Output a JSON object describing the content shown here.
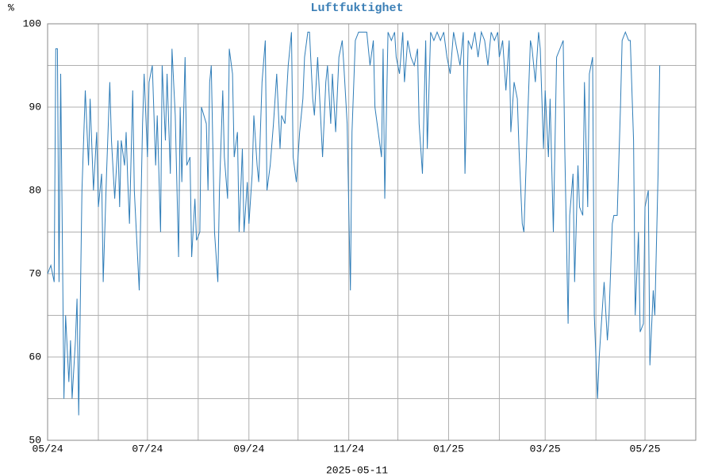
{
  "chart_data": {
    "type": "line",
    "title": "Luftfuktighet",
    "ylabel": "%",
    "xlabel": "2025-05-11",
    "color": "#2f7db8",
    "grid": true,
    "xlim": [
      0,
      396
    ],
    "xticks": [
      {
        "value": 0,
        "label": "05/24"
      },
      {
        "value": 31,
        "label": null
      },
      {
        "value": 61,
        "label": "07/24"
      },
      {
        "value": 92,
        "label": null
      },
      {
        "value": 123,
        "label": "09/24"
      },
      {
        "value": 153,
        "label": null
      },
      {
        "value": 184,
        "label": "11/24"
      },
      {
        "value": 214,
        "label": null
      },
      {
        "value": 245,
        "label": "01/25"
      },
      {
        "value": 276,
        "label": null
      },
      {
        "value": 304,
        "label": "03/25"
      },
      {
        "value": 335,
        "label": null
      },
      {
        "value": 365,
        "label": "05/25"
      },
      {
        "value": 396,
        "label": null
      }
    ],
    "ylim": [
      50,
      100
    ],
    "yticks": [
      50,
      {
        "value": 55,
        "label": null
      },
      60,
      {
        "value": 65,
        "label": null
      },
      70,
      {
        "value": 75,
        "label": null
      },
      80,
      {
        "value": 85,
        "label": null
      },
      90,
      {
        "value": 95,
        "label": null
      },
      100
    ],
    "x": [
      0,
      2,
      4,
      5,
      6,
      7,
      8,
      10,
      11,
      13,
      14,
      15,
      17,
      18,
      19,
      21,
      23,
      25,
      26,
      28,
      30,
      31,
      33,
      34,
      36,
      38,
      39,
      41,
      43,
      44,
      45,
      47,
      48,
      49,
      50,
      52,
      53,
      56,
      58,
      59,
      61,
      62,
      64,
      66,
      67,
      69,
      70,
      72,
      73,
      75,
      76,
      78,
      80,
      81,
      82,
      84,
      85,
      87,
      88,
      90,
      91,
      93,
      94,
      97,
      98,
      99,
      100,
      102,
      104,
      105,
      107,
      108,
      110,
      111,
      113,
      114,
      116,
      117,
      119,
      120,
      122,
      123,
      125,
      126,
      128,
      129,
      131,
      133,
      134,
      136,
      138,
      140,
      142,
      143,
      145,
      147,
      149,
      150,
      152,
      154,
      156,
      157,
      159,
      160,
      162,
      163,
      165,
      166,
      168,
      170,
      171,
      173,
      174,
      176,
      178,
      180,
      181,
      183,
      184,
      185,
      186,
      188,
      190,
      192,
      195,
      197,
      199,
      200,
      202,
      204,
      205,
      206,
      208,
      210,
      212,
      213,
      215,
      217,
      218,
      220,
      222,
      224,
      226,
      227,
      229,
      231,
      232,
      234,
      236,
      238,
      240,
      242,
      244,
      246,
      248,
      250,
      252,
      254,
      255,
      257,
      259,
      261,
      263,
      265,
      267,
      269,
      271,
      273,
      275,
      276,
      278,
      280,
      282,
      283,
      285,
      287,
      288,
      290,
      291,
      293,
      295,
      296,
      298,
      300,
      301,
      303,
      304,
      306,
      307,
      309,
      311,
      313,
      315,
      316,
      318,
      319,
      321,
      322,
      324,
      325,
      327,
      328,
      330,
      331,
      333,
      334,
      336,
      337,
      339,
      340,
      342,
      343,
      345,
      346,
      348,
      350,
      351,
      353,
      355,
      356,
      358,
      359,
      361,
      362,
      364,
      365,
      367,
      368,
      370,
      371,
      373,
      374
    ],
    "values": [
      70,
      71,
      69,
      97,
      97,
      69,
      94,
      55,
      65,
      57,
      62,
      55,
      62,
      67,
      53,
      80,
      92,
      83,
      91,
      80,
      87,
      78,
      82,
      69,
      82,
      93,
      86,
      79,
      86,
      78,
      86,
      83,
      87,
      81,
      76,
      92,
      80,
      68,
      88,
      94,
      84,
      93,
      95,
      83,
      89,
      75,
      95,
      86,
      94,
      82,
      97,
      89,
      72,
      90,
      81,
      96,
      83,
      84,
      72,
      79,
      74,
      75,
      90,
      88,
      80,
      93,
      95,
      75,
      69,
      80,
      92,
      84,
      79,
      97,
      94,
      84,
      87,
      75,
      85,
      75,
      81,
      76,
      82,
      89,
      83,
      81,
      93,
      98,
      80,
      83,
      88,
      94,
      85,
      89,
      88,
      95,
      99,
      84,
      81,
      87,
      91,
      96,
      99,
      99,
      91,
      89,
      96,
      92,
      84,
      93,
      95,
      88,
      94,
      87,
      96,
      98,
      95,
      88,
      78,
      68,
      87,
      98,
      99,
      99,
      99,
      95,
      98,
      90,
      87,
      84,
      97,
      79,
      99,
      98,
      99,
      96,
      94,
      99,
      93,
      98,
      96,
      95,
      97,
      88,
      82,
      98,
      85,
      99,
      98,
      99,
      98,
      99,
      96,
      94,
      99,
      97,
      95,
      99,
      82,
      98,
      97,
      99,
      96,
      99,
      98,
      95,
      99,
      98,
      99,
      96,
      98,
      92,
      98,
      87,
      93,
      91,
      85,
      76,
      75,
      87,
      98,
      97,
      93,
      99,
      97,
      85,
      92,
      84,
      91,
      75,
      96,
      97,
      98,
      85,
      64,
      77,
      82,
      69,
      83,
      78,
      77,
      93,
      78,
      94,
      96,
      65,
      55,
      60,
      66,
      69,
      62,
      65,
      76,
      77,
      77,
      90,
      98,
      99,
      98,
      98,
      86,
      65,
      75,
      63,
      64,
      78,
      80,
      59,
      68,
      65,
      82,
      95
    ]
  }
}
